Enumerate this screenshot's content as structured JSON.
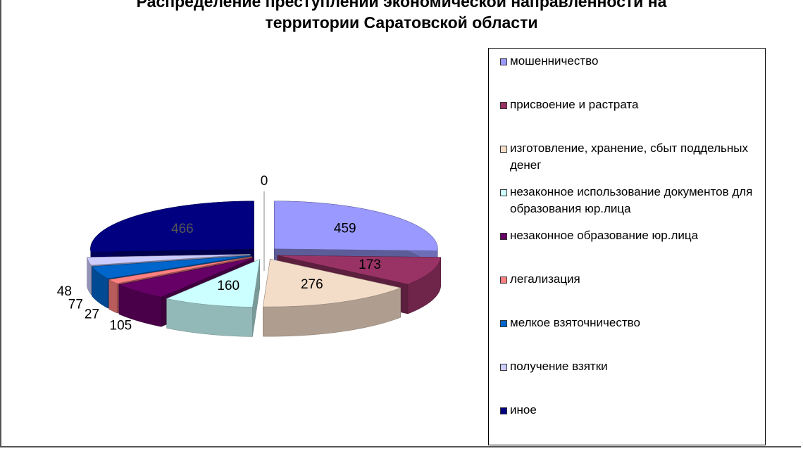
{
  "chart_data": {
    "type": "pie",
    "title": "Распределение преступлений экономической направленности на\nтерритории Саратовской области",
    "categories": [
      "мошенничество",
      "присвоение и растрата",
      "изготовление, хранение, сбыт поддельных денег",
      "незаконное использование документов для образования юр.лица",
      "незаконное образование юр.лица",
      "легализация",
      "мелкое взяточничество",
      "получение взятки",
      "иное",
      null
    ],
    "values": [
      459,
      173,
      276,
      160,
      105,
      27,
      77,
      48,
      466,
      0
    ],
    "colors": [
      "#9999ff",
      "#993366",
      "#f3dcc8",
      "#ccffff",
      "#660066",
      "#ff8080",
      "#0066cc",
      "#ccccff",
      "#000080",
      "#999999"
    ],
    "three_d": true,
    "exploded": true,
    "legend": "right"
  }
}
